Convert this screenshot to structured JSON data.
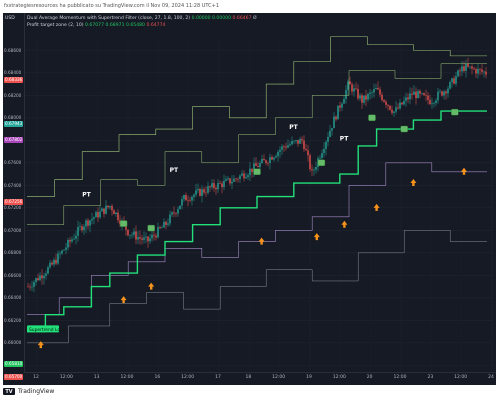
{
  "header": {
    "publish_line": "fxstrategiesresources ha pubblicato su TradingView.com il Nov 09, 2024 11:28 UTC+1"
  },
  "chart": {
    "currency": "USD",
    "legend_line1_label": "Dual Average Momentum with Supertrend Filter (close, 27, 1.8, 100, 2)",
    "legend_line1_values": [
      "0.00000",
      "0.00000",
      "0.66467"
    ],
    "legend_line1_tail": "Ø",
    "legend_line2_label": "Profit target zone (2, 10)",
    "legend_line2_values": [
      "0.67077",
      "0.68971",
      "0.65480",
      "0.64774"
    ],
    "supertrend_label": "Supertrend Long",
    "pt_label": "PT",
    "price_ticks": [
      {
        "label": "0.68600"
      },
      {
        "label": "0.68400"
      },
      {
        "label": "0.68200"
      },
      {
        "label": "0.68000"
      },
      {
        "label": "0.67800"
      },
      {
        "label": "0.67600"
      },
      {
        "label": "0.67400"
      },
      {
        "label": "0.67200"
      },
      {
        "label": "0.67000"
      },
      {
        "label": "0.66800"
      },
      {
        "label": "0.66600"
      },
      {
        "label": "0.66400"
      },
      {
        "label": "0.66200"
      },
      {
        "label": "0.66000"
      },
      {
        "label": "0.65800"
      }
    ],
    "price_badges": [
      {
        "label": "0.68336",
        "color": "#ef5350"
      },
      {
        "label": "0.67943",
        "color": "#26a69a"
      },
      {
        "label": "0.67802",
        "color": "#ab47bc"
      },
      {
        "label": "0.67256",
        "color": "#ef5350"
      },
      {
        "label": "0.65810",
        "color": "#22c55e"
      },
      {
        "label": "0.65700",
        "color": "#ef5350"
      }
    ],
    "time_ticks": [
      {
        "label": "12"
      },
      {
        "label": "12:00"
      },
      {
        "label": "13"
      },
      {
        "label": "12:00"
      },
      {
        "label": "16"
      },
      {
        "label": "12:00"
      },
      {
        "label": "17"
      },
      {
        "label": "18"
      },
      {
        "label": "12:00"
      },
      {
        "label": "19"
      },
      {
        "label": "12:00"
      },
      {
        "label": "20"
      },
      {
        "label": "12:00"
      },
      {
        "label": "23"
      },
      {
        "label": "12:00"
      },
      {
        "label": "24"
      }
    ],
    "colors": {
      "background": "#161a25",
      "up": "#26a69a",
      "down": "#ef5350",
      "supertrend": "#22e07a",
      "arrow": "#f7931a",
      "upper_band": "#9ec57a",
      "lower_band": "#a58ac8",
      "zone_band": "#8a8f99"
    },
    "icons": [
      "buy-arrow-icon",
      "entry-marker-icon"
    ]
  },
  "footer": {
    "brand": "TradingView",
    "logo_text": "TV"
  }
}
